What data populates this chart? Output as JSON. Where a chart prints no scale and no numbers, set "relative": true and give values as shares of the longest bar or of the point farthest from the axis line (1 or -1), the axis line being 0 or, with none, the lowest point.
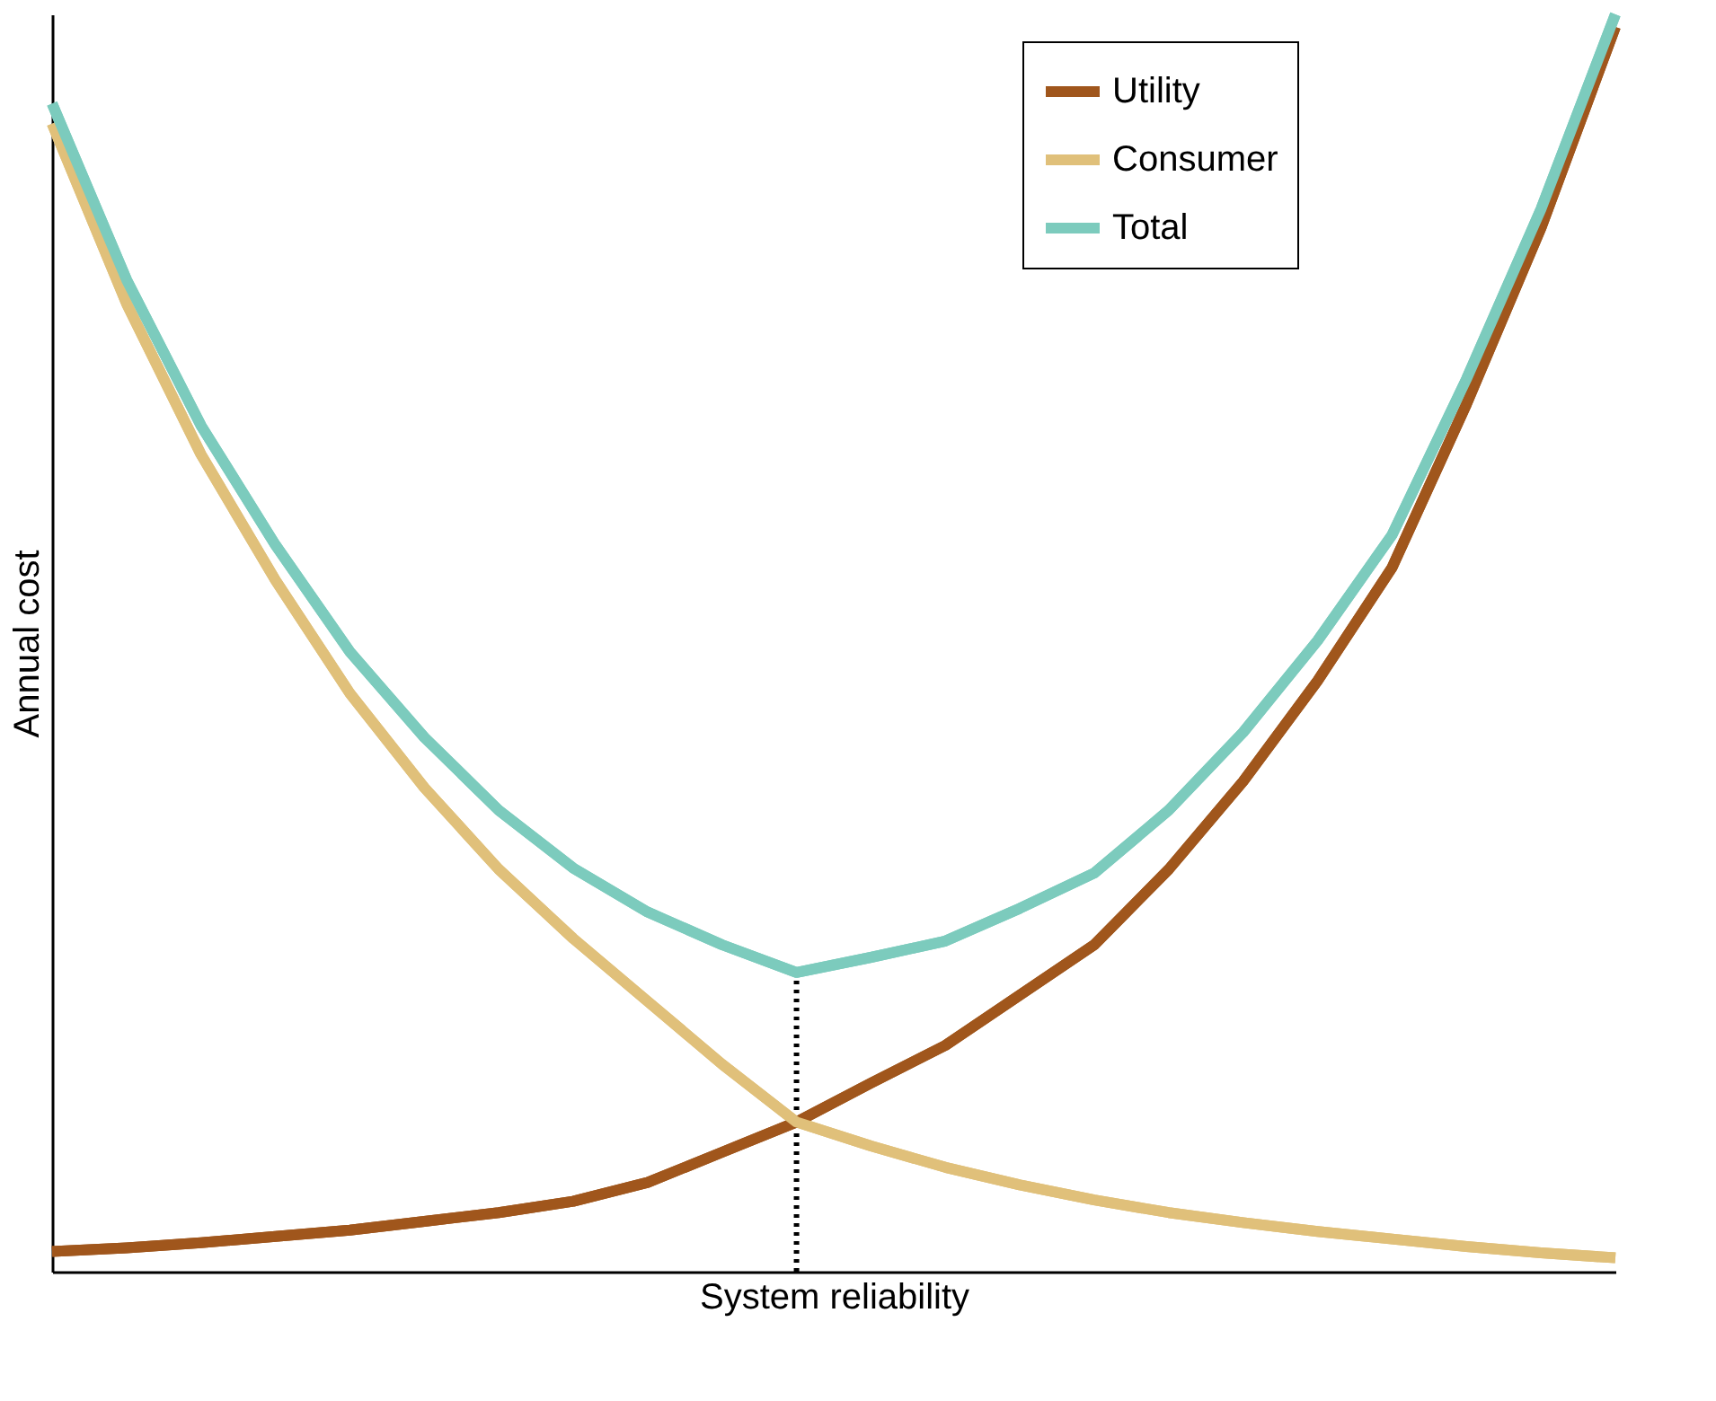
{
  "chart_data": {
    "type": "line",
    "relative": true,
    "xlabel": "System reliability",
    "ylabel": "Annual cost",
    "legend": "top right",
    "grid": false,
    "line_style": "solid",
    "marker": "none",
    "categories": [
      null,
      null,
      null,
      null,
      null,
      null,
      null,
      null,
      null,
      null,
      null,
      null,
      null,
      null,
      null,
      null,
      null,
      null,
      null,
      null,
      null,
      null
    ],
    "series": [
      {
        "name": "Utility",
        "color": "#a0561c",
        "values": [
          0.016,
          0.019,
          0.023,
          0.028,
          0.033,
          0.04,
          0.047,
          0.056,
          0.071,
          0.095,
          0.119,
          0.15,
          0.18,
          0.22,
          0.26,
          0.32,
          0.39,
          0.47,
          0.56,
          0.69,
          0.83,
          0.99
        ]
      },
      {
        "name": "Consumer",
        "color": "#e0c07a",
        "values": [
          0.913,
          0.77,
          0.65,
          0.55,
          0.46,
          0.385,
          0.32,
          0.265,
          0.215,
          0.165,
          0.119,
          0.1,
          0.083,
          0.069,
          0.057,
          0.047,
          0.039,
          0.032,
          0.026,
          0.02,
          0.015,
          0.011
        ]
      },
      {
        "name": "Total",
        "color": "#7ccbbd",
        "values": [
          0.929,
          0.789,
          0.673,
          0.578,
          0.493,
          0.425,
          0.367,
          0.321,
          0.286,
          0.26,
          0.238,
          0.25,
          0.263,
          0.289,
          0.317,
          0.367,
          0.429,
          0.502,
          0.586,
          0.71,
          0.845,
          1.0
        ]
      }
    ]
  }
}
